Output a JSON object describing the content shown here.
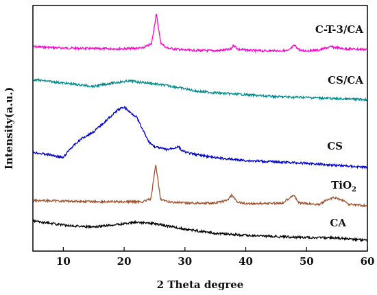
{
  "chart_data": {
    "type": "line",
    "xlabel": "2 Theta degree",
    "ylabel": "Intensity(a.u.)",
    "xlim": [
      5,
      60
    ],
    "x_ticks": [
      "10",
      "20",
      "30",
      "40",
      "50",
      "60"
    ],
    "y_ticks_shown": false,
    "grid": false,
    "legend": "labels placed beside each curve (right side)",
    "series": [
      {
        "name": "C-T-3/CA",
        "label_main": "C-T-3/CA",
        "label_sub": "",
        "color": "#ff00cc",
        "points": [
          [
            5,
            68
          ],
          [
            10,
            70
          ],
          [
            15,
            71
          ],
          [
            20,
            71
          ],
          [
            23,
            70
          ],
          [
            24.5,
            64
          ],
          [
            25.3,
            20
          ],
          [
            26,
            62
          ],
          [
            27,
            70
          ],
          [
            30,
            73
          ],
          [
            35,
            74
          ],
          [
            37.5,
            72
          ],
          [
            38,
            66
          ],
          [
            38.8,
            72
          ],
          [
            42,
            74
          ],
          [
            47,
            74
          ],
          [
            48,
            66
          ],
          [
            49,
            74
          ],
          [
            52,
            73
          ],
          [
            54,
            68
          ],
          [
            56,
            71
          ],
          [
            60,
            72
          ]
        ]
      },
      {
        "name": "CS/CA",
        "label_main": "CS/CA",
        "label_sub": "",
        "color": "#008b8b",
        "points": [
          [
            5,
            116
          ],
          [
            10,
            121
          ],
          [
            15,
            126
          ],
          [
            18,
            121
          ],
          [
            21,
            118
          ],
          [
            24,
            121
          ],
          [
            28,
            126
          ],
          [
            32,
            133
          ],
          [
            36,
            136
          ],
          [
            40,
            138
          ],
          [
            45,
            141
          ],
          [
            50,
            142
          ],
          [
            55,
            144
          ],
          [
            60,
            145
          ]
        ]
      },
      {
        "name": "CS",
        "label_main": "CS",
        "label_sub": "",
        "color": "#0000cc",
        "points": [
          [
            5,
            222
          ],
          [
            8,
            226
          ],
          [
            10,
            230
          ],
          [
            11,
            218
          ],
          [
            13,
            202
          ],
          [
            15,
            192
          ],
          [
            17,
            176
          ],
          [
            19,
            160
          ],
          [
            20,
            156
          ],
          [
            21,
            164
          ],
          [
            22,
            170
          ],
          [
            23,
            188
          ],
          [
            24,
            206
          ],
          [
            25,
            214
          ],
          [
            27,
            218
          ],
          [
            29,
            214
          ],
          [
            29.5,
            220
          ],
          [
            31,
            224
          ],
          [
            35,
            230
          ],
          [
            40,
            234
          ],
          [
            45,
            236
          ],
          [
            50,
            238
          ],
          [
            55,
            241
          ],
          [
            60,
            244
          ]
        ]
      },
      {
        "name": "TiO2",
        "label_main": "TiO",
        "label_sub": "2",
        "color": "#a0522d",
        "points": [
          [
            5,
            292
          ],
          [
            10,
            293
          ],
          [
            15,
            294
          ],
          [
            20,
            294
          ],
          [
            23,
            294
          ],
          [
            24.4,
            290
          ],
          [
            25.2,
            240
          ],
          [
            26,
            290
          ],
          [
            27,
            294
          ],
          [
            30,
            296
          ],
          [
            35,
            296
          ],
          [
            37,
            292
          ],
          [
            37.7,
            284
          ],
          [
            38.5,
            294
          ],
          [
            40,
            297
          ],
          [
            46,
            296
          ],
          [
            47.8,
            284
          ],
          [
            48.8,
            296
          ],
          [
            52,
            298
          ],
          [
            53.5,
            291
          ],
          [
            54.5,
            288
          ],
          [
            56,
            292
          ],
          [
            57,
            298
          ],
          [
            60,
            300
          ]
        ]
      },
      {
        "name": "CA",
        "label_main": "CA",
        "label_sub": "",
        "color": "#000000",
        "points": [
          [
            5,
            322
          ],
          [
            10,
            328
          ],
          [
            15,
            331
          ],
          [
            20,
            326
          ],
          [
            22,
            324
          ],
          [
            25,
            326
          ],
          [
            30,
            334
          ],
          [
            35,
            340
          ],
          [
            40,
            343
          ],
          [
            45,
            345
          ],
          [
            50,
            346
          ],
          [
            55,
            347
          ],
          [
            60,
            350
          ]
        ]
      }
    ]
  }
}
